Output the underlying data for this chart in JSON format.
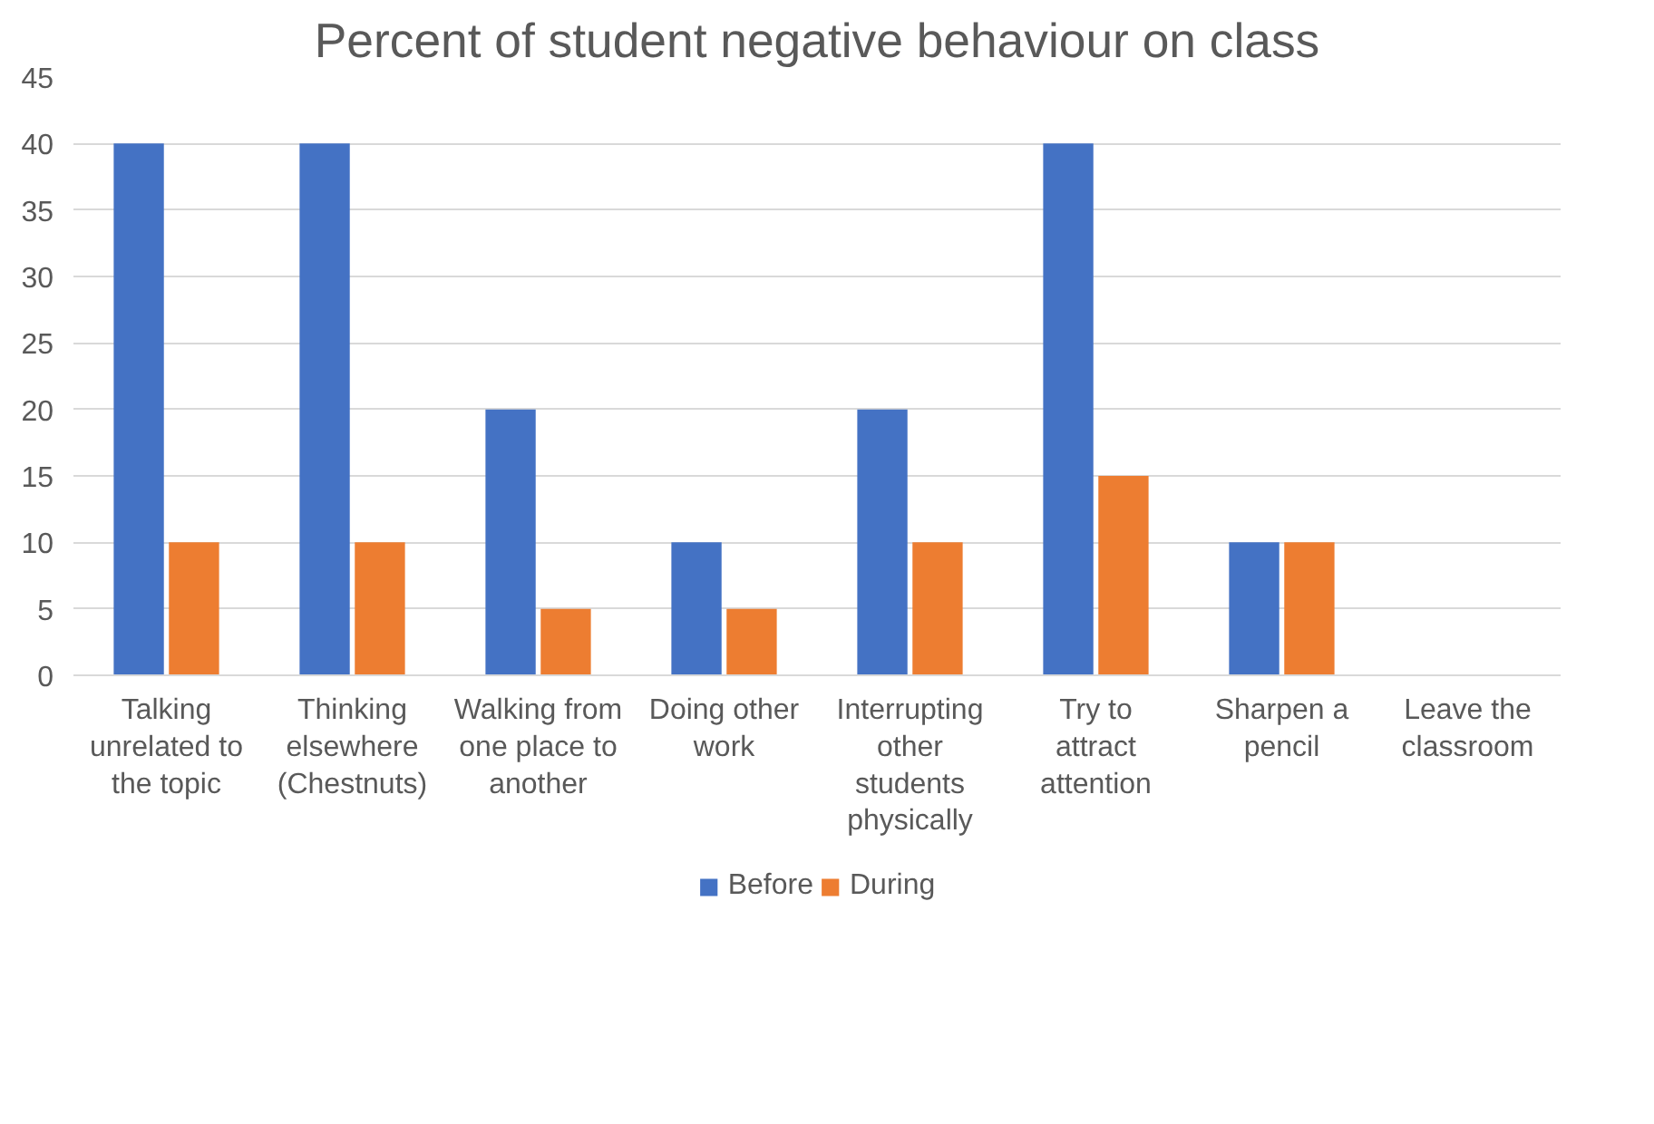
{
  "chart_data": {
    "type": "bar",
    "title": "Percent of student negative behaviour on class",
    "categories": [
      "Talking unrelated to the topic",
      "Thinking elsewhere (Chestnuts)",
      "Walking from one place to another",
      "Doing other work",
      "Interrupting other students physically",
      "Try to attract attention",
      "Sharpen a pencil",
      "Leave the classroom"
    ],
    "series": [
      {
        "name": "Before",
        "color": "#4472c4",
        "values": [
          40,
          40,
          20,
          10,
          20,
          40,
          10,
          0
        ]
      },
      {
        "name": "During",
        "color": "#ed7d31",
        "values": [
          10,
          10,
          5,
          5,
          10,
          15,
          10,
          0
        ]
      }
    ],
    "ylim": [
      0,
      45
    ],
    "yticks": [
      0,
      5,
      10,
      15,
      20,
      25,
      30,
      35,
      40,
      45
    ],
    "grid": "y",
    "legend": "bottom"
  }
}
